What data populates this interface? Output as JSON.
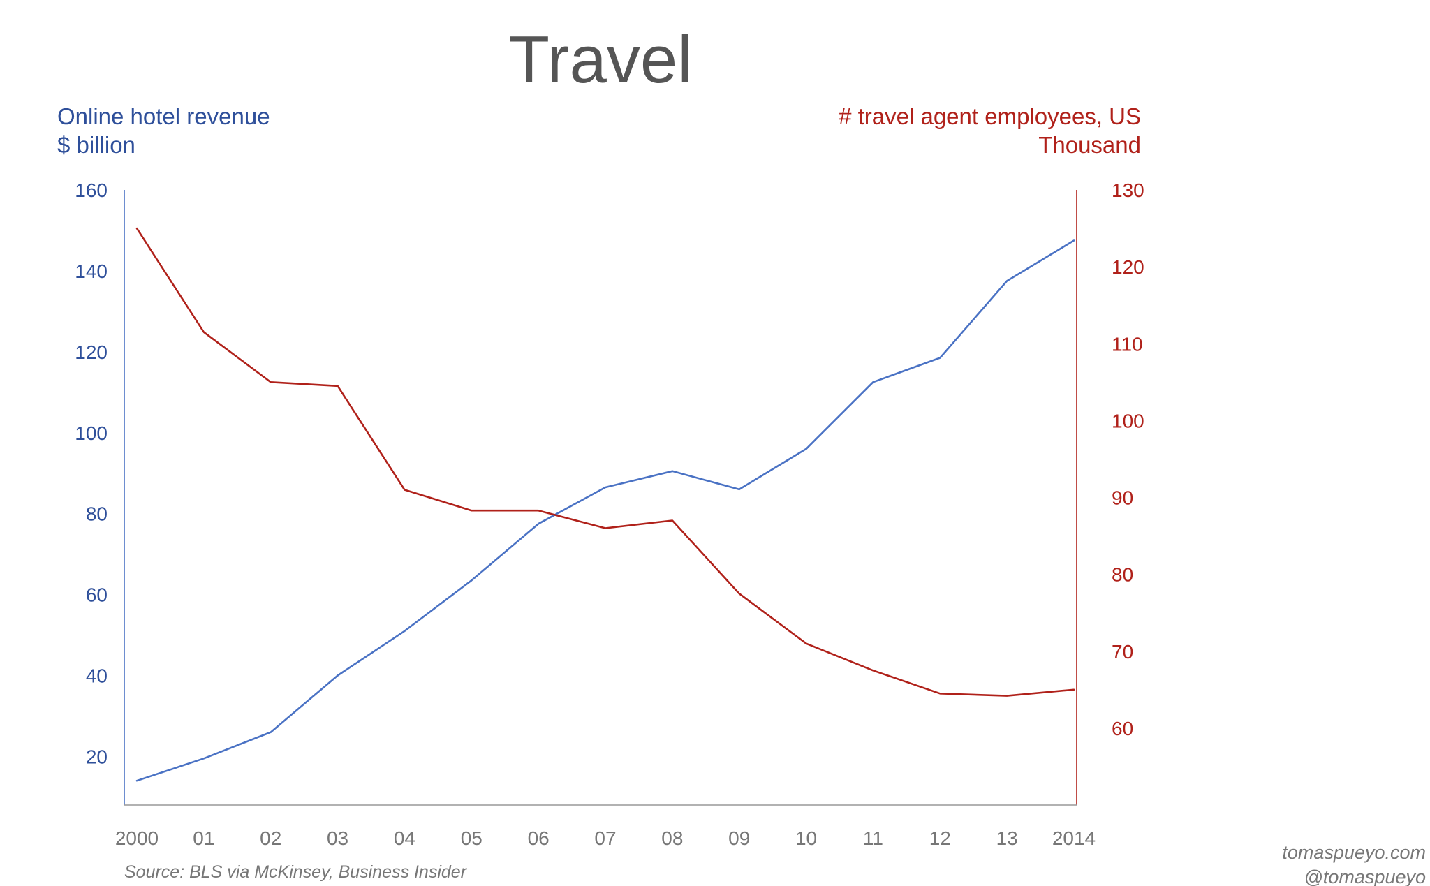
{
  "chart_data": {
    "type": "line",
    "title": "Travel",
    "x": [
      "2000",
      "01",
      "02",
      "03",
      "04",
      "05",
      "06",
      "07",
      "08",
      "09",
      "10",
      "11",
      "12",
      "13",
      "2014"
    ],
    "left_axis": {
      "label_line1": "Online hotel revenue",
      "label_line2": "$ billion",
      "ticks": [
        "160",
        "140",
        "120",
        "100",
        "80",
        "60",
        "40",
        "20"
      ],
      "ylim": [
        8,
        160
      ],
      "color": "#2e4f9a"
    },
    "right_axis": {
      "label_line1": "# travel agent employees, US",
      "label_line2": "Thousand",
      "ticks": [
        "130",
        "120",
        "110",
        "100",
        "90",
        "80",
        "70",
        "60"
      ],
      "ylim": [
        50,
        130
      ],
      "color": "#b0211a"
    },
    "series": [
      {
        "axis": "left",
        "color": "#4a72c4",
        "values": [
          14,
          19.5,
          26,
          40,
          51,
          63.5,
          77.5,
          86.5,
          90.5,
          86,
          96,
          112.5,
          118.5,
          137.5,
          147.5
        ]
      },
      {
        "axis": "right",
        "color": "#b0211a",
        "values": [
          125,
          111.5,
          105,
          104.5,
          91,
          88.3,
          88.3,
          86,
          87,
          77.5,
          71,
          67.5,
          64.5,
          64.2,
          65
        ]
      }
    ],
    "grid": false,
    "source": "Source: BLS via McKinsey, Business Insider"
  },
  "credits": {
    "line1": "tomaspueyo.com",
    "line2": "@tomaspueyo"
  }
}
